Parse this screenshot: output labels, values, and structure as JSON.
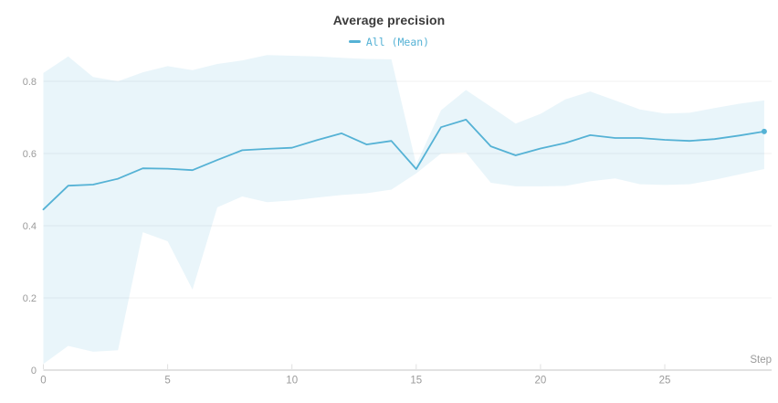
{
  "header": {
    "title": "Average precision"
  },
  "axes": {
    "x": {
      "label": "Step",
      "tick_labels": [
        "0",
        "5",
        "10",
        "15",
        "20",
        "25"
      ]
    },
    "y": {
      "tick_labels": [
        "0",
        "0.2",
        "0.4",
        "0.6",
        "0.8"
      ]
    }
  },
  "colors": {
    "line": "#55b2d5",
    "band_fill": "#55b2d5",
    "band_opacity": 0.13,
    "grid": "#f0f0f0",
    "axis_line": "#e2e2e2",
    "tick_mark": "#e0e0e0",
    "tick_text": "#9b9b9b",
    "title_text": "#3b3b3b"
  },
  "chart_data": {
    "type": "line",
    "title": "Average precision",
    "xlabel": "Step",
    "ylabel": "",
    "legend_position": "top-center",
    "grid": true,
    "band_represents": "min-max",
    "xlim": [
      0,
      29
    ],
    "ylim": [
      0,
      0.9
    ],
    "x_ticks": [
      0,
      5,
      10,
      15,
      20,
      25
    ],
    "y_ticks": [
      0,
      0.2,
      0.4,
      0.6,
      0.8
    ],
    "x": [
      0,
      1,
      2,
      3,
      4,
      5,
      6,
      7,
      8,
      9,
      10,
      11,
      12,
      13,
      14,
      15,
      16,
      17,
      18,
      19,
      20,
      21,
      22,
      23,
      24,
      25,
      26,
      27,
      28,
      29
    ],
    "series": [
      {
        "name": "All (Mean)",
        "values": [
          0.445,
          0.511,
          0.514,
          0.53,
          0.559,
          0.558,
          0.554,
          0.582,
          0.609,
          0.613,
          0.616,
          0.637,
          0.656,
          0.625,
          0.635,
          0.557,
          0.673,
          0.694,
          0.62,
          0.595,
          0.614,
          0.629,
          0.651,
          0.643,
          0.643,
          0.638,
          0.635,
          0.64,
          0.65,
          0.661
        ],
        "band_max": [
          0.823,
          0.869,
          0.812,
          0.8,
          0.825,
          0.842,
          0.831,
          0.848,
          0.858,
          0.873,
          0.871,
          0.869,
          0.865,
          0.862,
          0.861,
          0.57,
          0.72,
          0.776,
          0.73,
          0.683,
          0.71,
          0.75,
          0.772,
          0.747,
          0.722,
          0.711,
          0.713,
          0.726,
          0.738,
          0.747
        ],
        "band_min": [
          0.017,
          0.067,
          0.051,
          0.055,
          0.382,
          0.357,
          0.223,
          0.451,
          0.481,
          0.465,
          0.47,
          0.478,
          0.485,
          0.49,
          0.5,
          0.545,
          0.6,
          0.603,
          0.519,
          0.509,
          0.509,
          0.51,
          0.523,
          0.531,
          0.515,
          0.513,
          0.515,
          0.527,
          0.542,
          0.557
        ]
      }
    ]
  }
}
